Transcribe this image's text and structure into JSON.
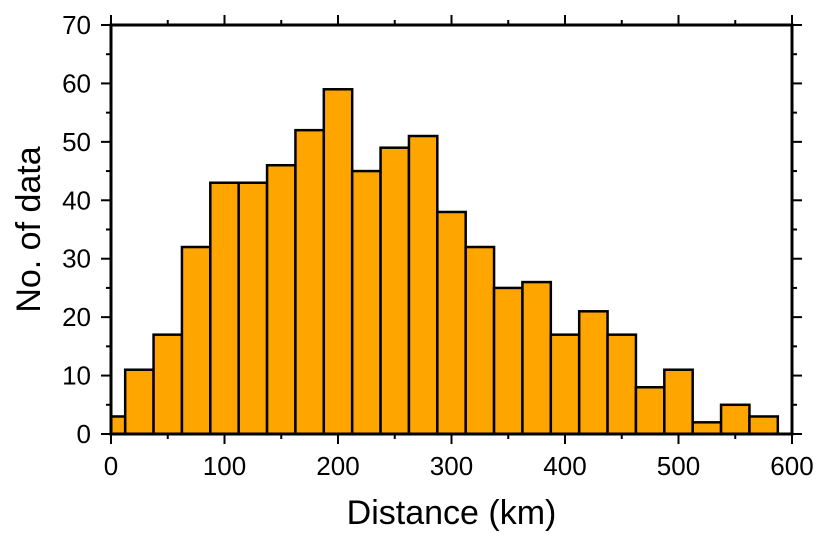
{
  "chart_data": {
    "type": "bar",
    "title": "",
    "xlabel": "Distance (km)",
    "ylabel": "No. of data",
    "xlim": [
      0,
      600
    ],
    "ylim": [
      0,
      70
    ],
    "bin_width": 25,
    "bin_edges_start": [
      -12.5,
      12.5,
      37.5,
      62.5,
      87.5,
      112.5,
      137.5,
      162.5,
      187.5,
      212.5,
      237.5,
      262.5,
      287.5,
      312.5,
      337.5,
      362.5,
      387.5,
      412.5,
      437.5,
      462.5,
      487.5,
      512.5,
      537.5,
      562.5
    ],
    "values": [
      3,
      11,
      17,
      32,
      43,
      43,
      46,
      52,
      59,
      45,
      49,
      51,
      38,
      32,
      25,
      26,
      17,
      21,
      17,
      8,
      11,
      2,
      5,
      3
    ],
    "x_ticks": [
      0,
      100,
      200,
      300,
      400,
      500,
      600
    ],
    "x_tick_labels": [
      "0",
      "100",
      "200",
      "300",
      "400",
      "500",
      "600"
    ],
    "y_ticks": [
      0,
      10,
      20,
      30,
      40,
      50,
      60,
      70
    ],
    "y_tick_labels": [
      "0",
      "10",
      "20",
      "30",
      "40",
      "50",
      "60",
      "70"
    ],
    "bar_color": "#ffa500",
    "edge_color": "#000000",
    "grid": false
  }
}
